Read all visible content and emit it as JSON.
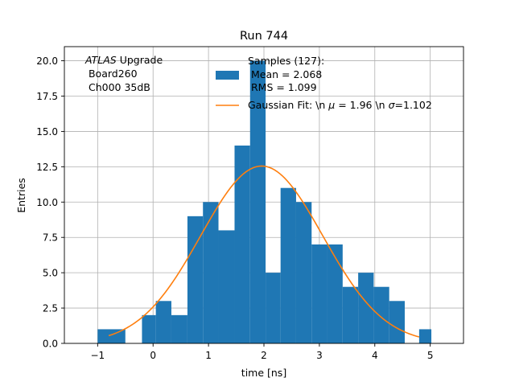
{
  "chart_data": {
    "type": "bar",
    "title": "Run 744",
    "xlabel": "time [ns]",
    "ylabel": "Entries",
    "xlim": [
      -1.6,
      5.6
    ],
    "ylim": [
      0,
      21
    ],
    "grid": true,
    "legend_position": "top-right",
    "x_ticks": [
      -1,
      0,
      1,
      2,
      3,
      4,
      5
    ],
    "y_ticks": [
      0.0,
      2.5,
      5.0,
      7.5,
      10.0,
      12.5,
      15.0,
      17.5,
      20.0
    ],
    "x_tick_labels": [
      "−1",
      "0",
      "1",
      "2",
      "3",
      "4",
      "5"
    ],
    "y_tick_labels": [
      "0.0",
      "2.5",
      "5.0",
      "7.5",
      "10.0",
      "12.5",
      "15.0",
      "17.5",
      "20.0"
    ],
    "histogram": {
      "color": "#1f77b4",
      "bins": [
        {
          "x0": -1.0,
          "x1": -0.5,
          "count": 1
        },
        {
          "x0": -0.2,
          "x1": 0.05,
          "count": 2
        },
        {
          "x0": 0.05,
          "x1": 0.33,
          "count": 3
        },
        {
          "x0": 0.33,
          "x1": 0.62,
          "count": 2
        },
        {
          "x0": 0.62,
          "x1": 0.9,
          "count": 9
        },
        {
          "x0": 0.9,
          "x1": 1.18,
          "count": 10
        },
        {
          "x0": 1.18,
          "x1": 1.47,
          "count": 8
        },
        {
          "x0": 1.47,
          "x1": 1.75,
          "count": 14
        },
        {
          "x0": 1.75,
          "x1": 2.03,
          "count": 20
        },
        {
          "x0": 2.03,
          "x1": 2.3,
          "count": 5
        },
        {
          "x0": 2.3,
          "x1": 2.58,
          "count": 11
        },
        {
          "x0": 2.58,
          "x1": 2.86,
          "count": 10
        },
        {
          "x0": 2.86,
          "x1": 3.14,
          "count": 7
        },
        {
          "x0": 3.14,
          "x1": 3.42,
          "count": 7
        },
        {
          "x0": 3.42,
          "x1": 3.7,
          "count": 4
        },
        {
          "x0": 3.7,
          "x1": 3.98,
          "count": 5
        },
        {
          "x0": 3.98,
          "x1": 4.26,
          "count": 4
        },
        {
          "x0": 4.26,
          "x1": 4.54,
          "count": 3
        },
        {
          "x0": 4.8,
          "x1": 5.02,
          "count": 1
        }
      ]
    },
    "fit": {
      "color": "#ff7f0e",
      "amplitude": 12.55,
      "mu": 1.96,
      "sigma": 1.102,
      "x_range": [
        -0.8,
        4.8
      ]
    },
    "annotation": {
      "italic_part": "ATLAS",
      "rest_line1": " Upgrade",
      "line2": " Board260",
      "line3": " Ch000 35dB"
    },
    "legend": {
      "hist_line1": "Samples (127):",
      "hist_line2": " Mean = 2.068",
      "hist_line3": " RMS = 1.099",
      "fit_prefix": "Gaussian Fit: \\n ",
      "fit_mu_symbol": "μ",
      "fit_middle": " = 1.96 \\n ",
      "fit_sigma_symbol": "σ",
      "fit_suffix": "=1.102"
    }
  }
}
